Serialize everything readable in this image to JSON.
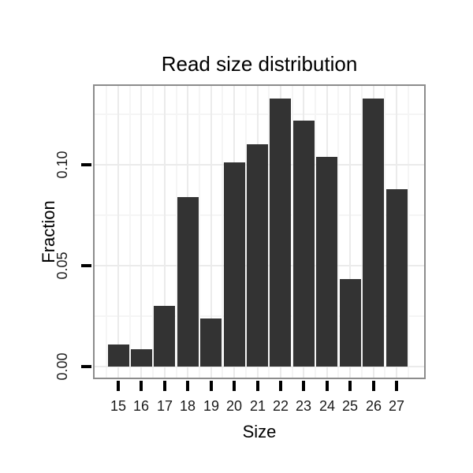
{
  "chart_data": {
    "type": "bar",
    "title": "Read size distribution",
    "xlabel": "Size",
    "ylabel": "Fraction",
    "categories": [
      "15",
      "16",
      "17",
      "18",
      "19",
      "20",
      "21",
      "22",
      "23",
      "24",
      "25",
      "26",
      "27"
    ],
    "values": [
      0.011,
      0.0085,
      0.03,
      0.084,
      0.024,
      0.101,
      0.11,
      0.133,
      0.122,
      0.104,
      0.0435,
      0.133,
      0.088
    ],
    "y_ticks": [
      {
        "value": 0.0,
        "label": "0.00"
      },
      {
        "value": 0.05,
        "label": "0.05"
      },
      {
        "value": 0.1,
        "label": "0.10"
      }
    ],
    "y_minor_gridlines": [
      0.025,
      0.075,
      0.125
    ],
    "ylim": [
      -0.0066,
      0.1395
    ],
    "legend_position": "none",
    "grid": "on",
    "colors": {
      "bar_fill": "#333333",
      "panel_border": "#8c8c8c",
      "grid_major": "#ebebeb",
      "grid_minor": "#f5f5f5",
      "tick": "#000000",
      "title_text": "#000000",
      "axis_text": "#1a1a1a",
      "background": "#ffffff"
    }
  }
}
